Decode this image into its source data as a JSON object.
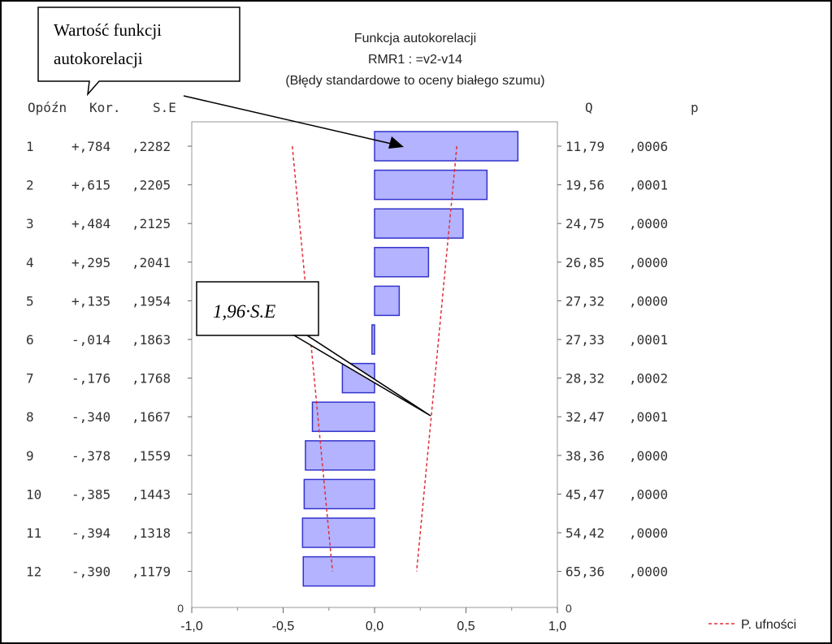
{
  "chart_data": {
    "type": "bar",
    "orientation": "horizontal",
    "title_lines": [
      "Funkcja autokorelacji",
      "RMR1    : =v2-v14",
      "(Błędy standardowe to oceny białego szumu)"
    ],
    "columns": {
      "lag": "Opóźn",
      "corr": "Kor.",
      "se": "S.E",
      "q": "Q",
      "p": "p"
    },
    "rows": [
      {
        "lag": 1,
        "corr": 0.784,
        "corr_label": "+,784",
        "se": 0.2282,
        "se_label": ",2282",
        "q": "11,79",
        "p": ",0006"
      },
      {
        "lag": 2,
        "corr": 0.615,
        "corr_label": "+,615",
        "se": 0.2205,
        "se_label": ",2205",
        "q": "19,56",
        "p": ",0001"
      },
      {
        "lag": 3,
        "corr": 0.484,
        "corr_label": "+,484",
        "se": 0.2125,
        "se_label": ",2125",
        "q": "24,75",
        "p": ",0000"
      },
      {
        "lag": 4,
        "corr": 0.295,
        "corr_label": "+,295",
        "se": 0.2041,
        "se_label": ",2041",
        "q": "26,85",
        "p": ",0000"
      },
      {
        "lag": 5,
        "corr": 0.135,
        "corr_label": "+,135",
        "se": 0.1954,
        "se_label": ",1954",
        "q": "27,32",
        "p": ",0000"
      },
      {
        "lag": 6,
        "corr": -0.014,
        "corr_label": "-,014",
        "se": 0.1863,
        "se_label": ",1863",
        "q": "27,33",
        "p": ",0001"
      },
      {
        "lag": 7,
        "corr": -0.176,
        "corr_label": "-,176",
        "se": 0.1768,
        "se_label": ",1768",
        "q": "28,32",
        "p": ",0002"
      },
      {
        "lag": 8,
        "corr": -0.34,
        "corr_label": "-,340",
        "se": 0.1667,
        "se_label": ",1667",
        "q": "32,47",
        "p": ",0001"
      },
      {
        "lag": 9,
        "corr": -0.378,
        "corr_label": "-,378",
        "se": 0.1559,
        "se_label": ",1559",
        "q": "38,36",
        "p": ",0000"
      },
      {
        "lag": 10,
        "corr": -0.385,
        "corr_label": "-,385",
        "se": 0.1443,
        "se_label": ",1443",
        "q": "45,47",
        "p": ",0000"
      },
      {
        "lag": 11,
        "corr": -0.394,
        "corr_label": "-,394",
        "se": 0.1318,
        "se_label": ",1318",
        "q": "54,42",
        "p": ",0000"
      },
      {
        "lag": 12,
        "corr": -0.39,
        "corr_label": "-,390",
        "se": 0.1179,
        "se_label": ",1179",
        "q": "65,36",
        "p": ",0000"
      }
    ],
    "xlim": [
      -1.0,
      1.0
    ],
    "x_ticks": [
      "-1,0",
      "-0,5",
      "0,0",
      "0,5",
      "1,0"
    ],
    "y_zero_label": "0",
    "q_zero_label": "0",
    "confidence_band": {
      "upper_top": 0.45,
      "upper_bottom": 0.23,
      "lower_top": -0.45,
      "lower_bottom": -0.23
    },
    "legend": {
      "label": "P. ufności",
      "position": "bottom-right"
    },
    "bar_color": "#b3b3ff",
    "bar_border": "#3333cc",
    "band_color": "#e0303a"
  },
  "annotations": {
    "acf_value": [
      "Wartość funkcji",
      "autokorelacji"
    ],
    "conf_limit": "1,96·S.E"
  }
}
